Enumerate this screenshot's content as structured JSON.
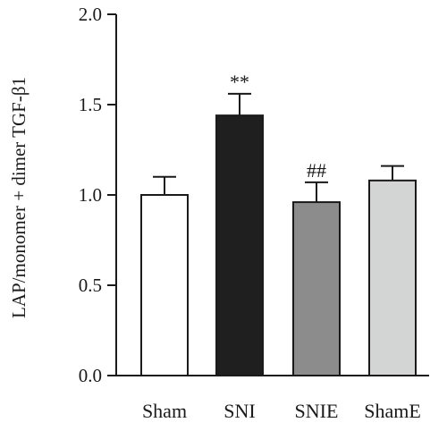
{
  "chart_data": {
    "type": "bar",
    "title": "",
    "xlabel": "",
    "ylabel": "LAP/monomer + dimer TGF-β1",
    "ylim": [
      0,
      2.0
    ],
    "yticks": [
      {
        "value": 0.0,
        "label": "0.0"
      },
      {
        "value": 0.5,
        "label": "0.5"
      },
      {
        "value": 1.0,
        "label": "1.0"
      },
      {
        "value": 1.5,
        "label": "1.5"
      },
      {
        "value": 2.0,
        "label": "2.0"
      }
    ],
    "grid": false,
    "legend": "none",
    "categories": [
      "Sham",
      "SNI",
      "SNIE",
      "ShamE"
    ],
    "values": [
      1.0,
      1.44,
      0.96,
      1.08
    ],
    "errors": [
      0.1,
      0.12,
      0.11,
      0.08
    ],
    "annotations": [
      "",
      "**",
      "##",
      ""
    ],
    "colors": {
      "bars": [
        "#ffffff",
        "#1f1f1f",
        "#8c8c8c",
        "#d3d5d4"
      ],
      "outline": "#1a1a1a",
      "axis": "#1a1a1a"
    }
  }
}
